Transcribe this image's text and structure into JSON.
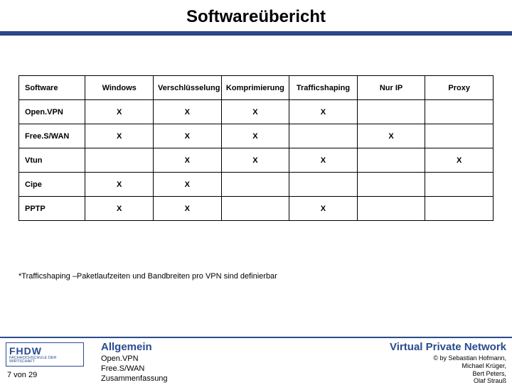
{
  "title": "Softwareübericht",
  "table": {
    "columns": [
      "Software",
      "Windows",
      "Verschlüsselung",
      "Komprimierung",
      "Trafficshaping",
      "Nur IP",
      "Proxy"
    ],
    "rows": [
      {
        "label": "Open.VPN",
        "cells": [
          "X",
          "X",
          "X",
          "X",
          "",
          ""
        ]
      },
      {
        "label": "Free.S/WAN",
        "cells": [
          "X",
          "X",
          "X",
          "",
          "X",
          ""
        ]
      },
      {
        "label": "Vtun",
        "cells": [
          "",
          "X",
          "X",
          "X",
          "",
          "X"
        ]
      },
      {
        "label": "Cipe",
        "cells": [
          "X",
          "X",
          "",
          "",
          "",
          ""
        ]
      },
      {
        "label": "PPTP",
        "cells": [
          "X",
          "X",
          "",
          "X",
          "",
          ""
        ]
      }
    ]
  },
  "footnote": "*Trafficshaping –Paketlaufzeiten und Bandbreiten pro VPN sind definierbar",
  "footer": {
    "logo_big": "FHDW",
    "logo_small": "FACHHOCHSCHULE DER WIRTSCHAFT",
    "section_title": "Allgemein",
    "section_items": [
      "Open.VPN",
      "Free.S/WAN",
      "Zusammenfassung"
    ],
    "vpn_title": "Virtual Private Network",
    "credits": [
      "© by Sebastian Hofmann,",
      "Michael Krüger,",
      "Bert Peters,",
      "Olaf Strauß"
    ],
    "page": "7 von 29"
  },
  "colors": {
    "accent": "#2a4b8d",
    "bg": "#ffffff",
    "text": "#000000"
  }
}
